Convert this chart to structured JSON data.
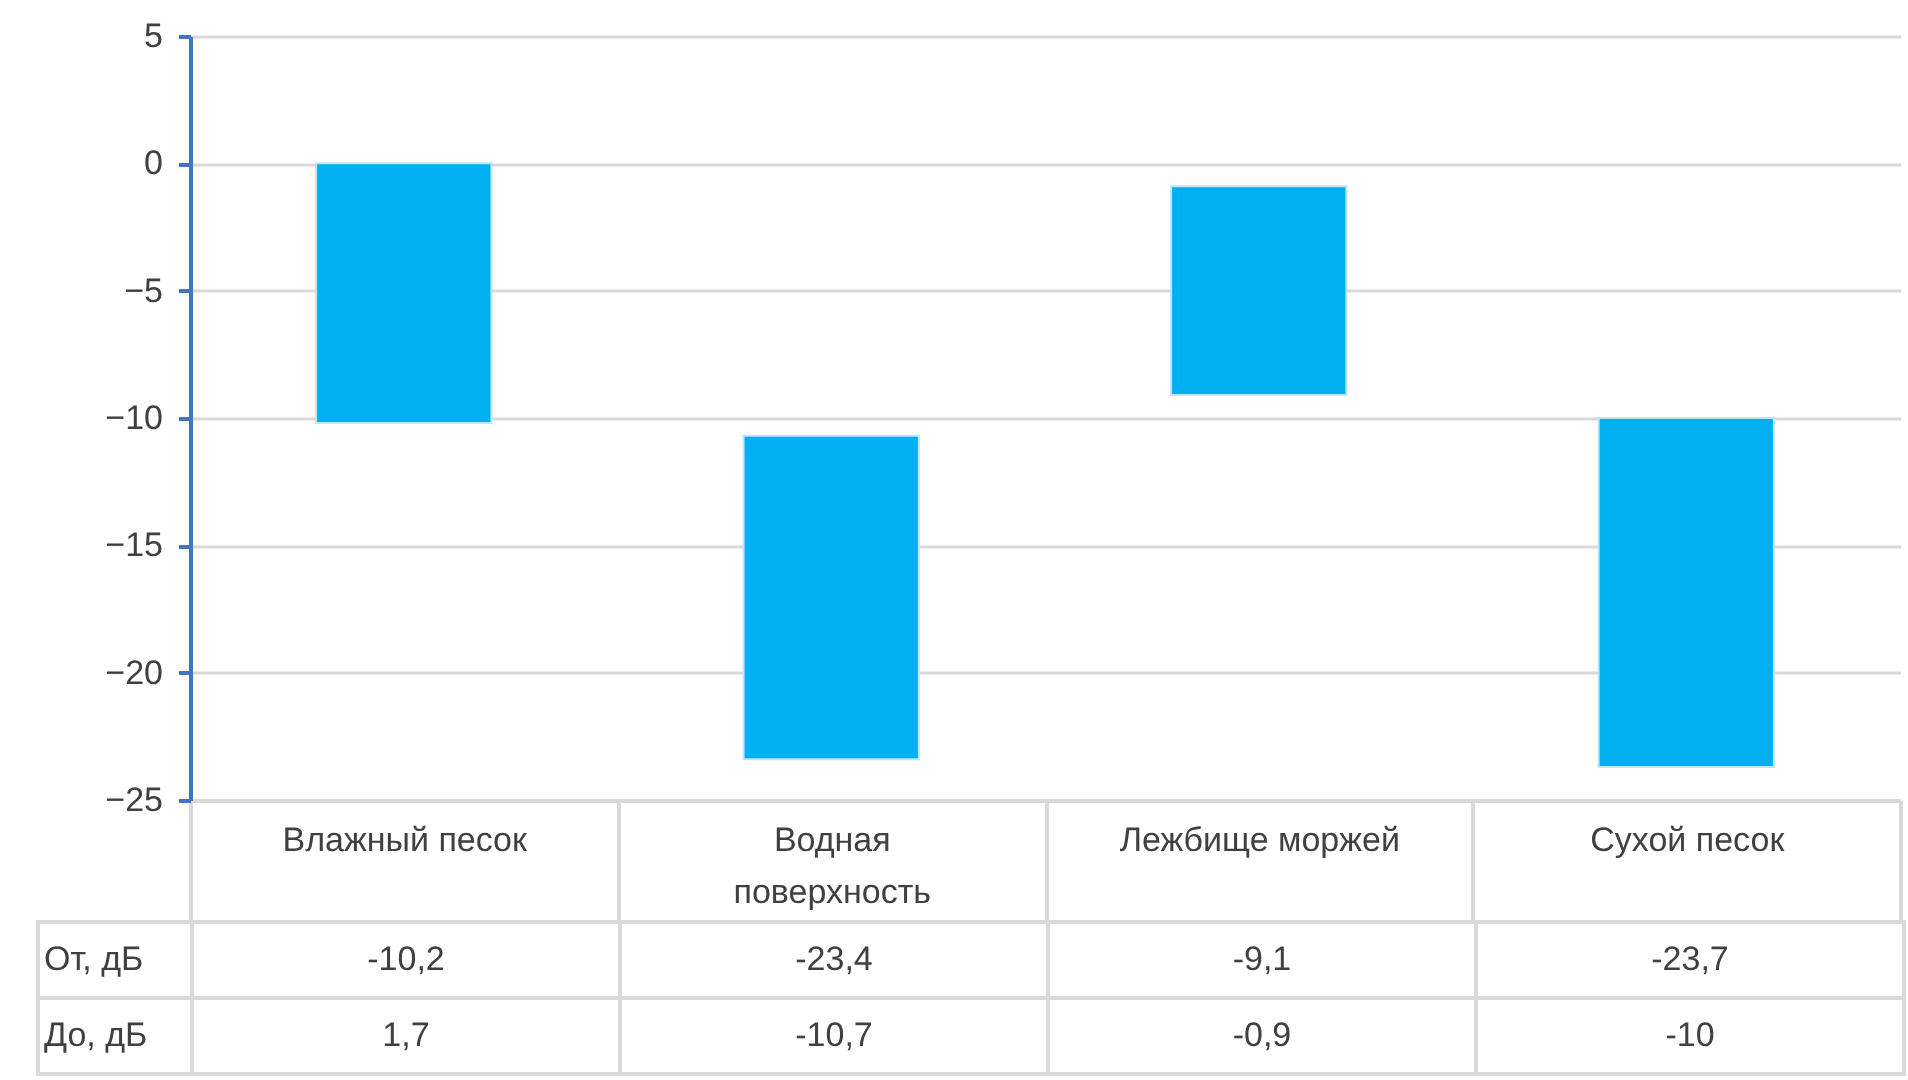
{
  "chart_data": {
    "type": "bar",
    "categories": [
      "Влажный песок",
      "Водная поверхность",
      "Лежбище моржей",
      "Сухой песок"
    ],
    "base": [
      0,
      -10.7,
      -0.9,
      -10
    ],
    "values": [
      -10.2,
      -12.7,
      -8.2,
      -13.7
    ],
    "color": "#00b0f0",
    "ylim": [
      -25,
      5
    ],
    "yticks": [
      -25,
      -20,
      -15,
      -10,
      -5,
      0,
      5
    ],
    "grid": "y",
    "annotations": [
      "От, дБ",
      "-10,2",
      "-23,4",
      "-9,1",
      "-23,7",
      "До, дБ",
      "1,7",
      "-10,7",
      "-0,9",
      "-10"
    ]
  }
}
